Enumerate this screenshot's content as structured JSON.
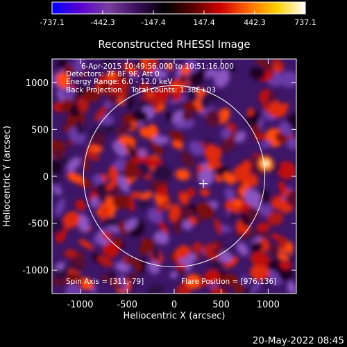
{
  "colorbar": {
    "tick_labels": [
      "-737.1",
      "-442.3",
      "-147.4",
      "147.4",
      "442.3",
      "737.1"
    ],
    "min": -737.1,
    "max": 737.1,
    "colors": [
      "#0000ff",
      "#5a00d0",
      "#7a3fa0",
      "#3b0f5c",
      "#000000",
      "#5a0000",
      "#d00000",
      "#ff6a00",
      "#ffd000",
      "#ffffff"
    ]
  },
  "image": {
    "title": "Reconstructed RHESSI Image",
    "info_lines": [
      "6-Apr-2015 10:49:56.000 to 10:51:16.000",
      "Detectors: 7F 8F 9F, Att 0",
      "Energy Range: 6.0 - 12.0 keV",
      "Back Projection    Total counts: 1.38E+03"
    ],
    "spin_axis": "Spin Axis = [311,-79]",
    "flare_position": "Flare Position = [976,136]",
    "xlabel": "Heliocentric X (arcsec)",
    "ylabel": "Heliocentric Y (arcsec)",
    "x_ticks": [
      "-1000",
      "-500",
      "0",
      "500",
      "1000"
    ],
    "y_ticks": [
      "1000",
      "500",
      "0",
      "-500",
      "-1000"
    ],
    "x_range": [
      -1300,
      1300
    ],
    "y_range": [
      -1250,
      1250
    ],
    "solar_limb_radius_arcsec": 965,
    "spin_axis_xy": [
      311,
      -79
    ],
    "flare_xy": [
      976,
      136
    ]
  },
  "footer": {
    "timestamp": "20-May-2022 08:45"
  }
}
